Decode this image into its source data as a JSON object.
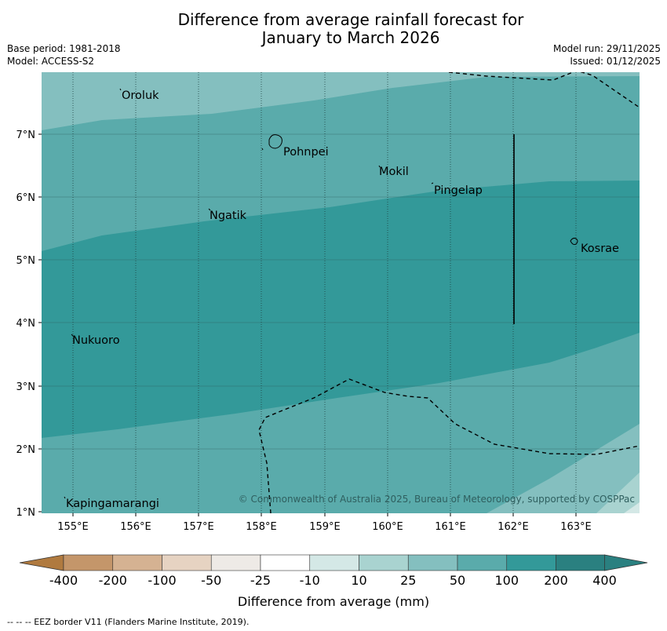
{
  "title": {
    "line1": "Difference from average rainfall forecast for",
    "line2": "January to March 2026"
  },
  "meta_left": {
    "base_period": "Base period: 1981-2018",
    "model": "Model: ACCESS-S2"
  },
  "meta_right": {
    "model_run": "Model run: 29/11/2025",
    "issued": "Issued: 01/12/2025"
  },
  "map": {
    "x_ticks": [
      "155°E",
      "156°E",
      "157°E",
      "158°E",
      "159°E",
      "160°E",
      "161°E",
      "162°E",
      "163°E"
    ],
    "y_ticks": [
      "7°N",
      "6°N",
      "5°N",
      "4°N",
      "3°N",
      "2°N",
      "1°N"
    ],
    "places": {
      "oroluk": "Oroluk",
      "pohnpei": "Pohnpei",
      "mokil": "Mokil",
      "pingelap": "Pingelap",
      "ngatik": "Ngatik",
      "kosrae": "Kosrae",
      "nukuoro": "Nukuoro",
      "kapingamarangi": "Kapingamarangi"
    },
    "copyright": "© Commonwealth of Australia 2025, Bureau of Meteorology, supported by COSPPac"
  },
  "colorbar": {
    "labels": [
      "-400",
      "-200",
      "-100",
      "-50",
      "-25",
      "-10",
      "10",
      "25",
      "50",
      "100",
      "200",
      "400"
    ],
    "colors": [
      "#b07a3f",
      "#c4966a",
      "#d5b292",
      "#e6d3c2",
      "#eeeae6",
      "#ffffff",
      "#d4e8e6",
      "#a9d3d0",
      "#84bfbf",
      "#5aabab",
      "#339999",
      "#2a8080"
    ],
    "label": "Difference from average (mm)"
  },
  "footnote": "--  --  -- EEZ border V11 (Flanders Marine Institute, 2019)."
}
